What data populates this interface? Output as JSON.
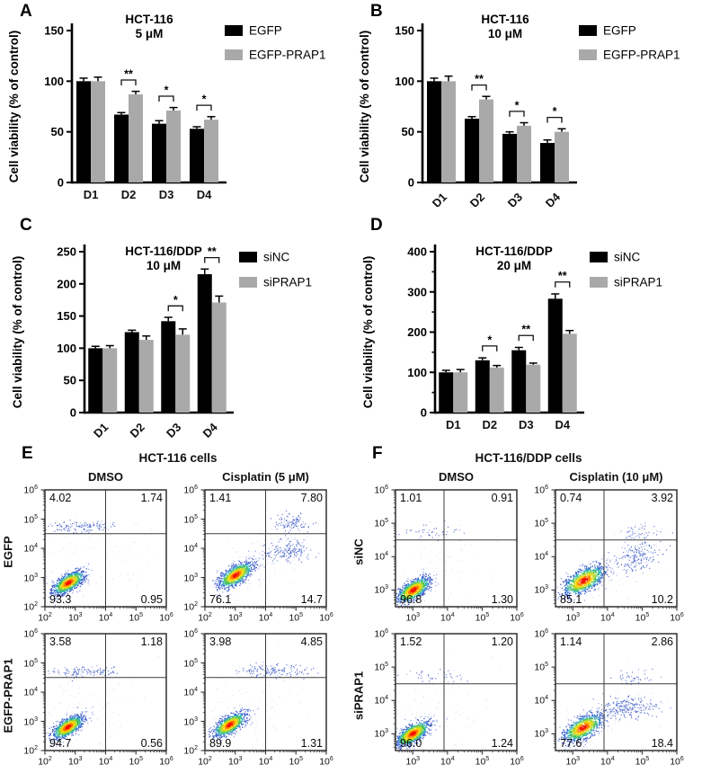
{
  "chart_data": [
    {
      "panel": "A",
      "type": "bar",
      "title": "HCT-116",
      "subtitle": "5 μM",
      "ylabel": "Cell viability (% of control)",
      "ylim": [
        0,
        150
      ],
      "yticks": [
        0,
        50,
        100,
        150
      ],
      "categories": [
        "D1",
        "D2",
        "D3",
        "D4"
      ],
      "x_tick_rotated": false,
      "series": [
        {
          "name": "EGFP",
          "color": "#000000",
          "values": [
            100,
            67,
            58,
            53
          ],
          "errors": [
            3,
            2,
            3,
            2
          ]
        },
        {
          "name": "EGFP-PRAP1",
          "color": "#a9a9a9",
          "values": [
            100,
            87,
            71,
            62
          ],
          "errors": [
            4,
            3,
            3,
            3
          ]
        }
      ],
      "significance": [
        {
          "category": "D2",
          "label": "**"
        },
        {
          "category": "D3",
          "label": "*"
        },
        {
          "category": "D4",
          "label": "*"
        }
      ]
    },
    {
      "panel": "B",
      "type": "bar",
      "title": "HCT-116",
      "subtitle": "10 μM",
      "ylabel": "Cell viability (% of control)",
      "ylim": [
        0,
        150
      ],
      "yticks": [
        0,
        50,
        100,
        150
      ],
      "categories": [
        "D1",
        "D2",
        "D3",
        "D4"
      ],
      "x_tick_rotated": true,
      "series": [
        {
          "name": "EGFP",
          "color": "#000000",
          "values": [
            100,
            63,
            48,
            39
          ],
          "errors": [
            3,
            2,
            2,
            3
          ]
        },
        {
          "name": "EGFP-PRAP1",
          "color": "#a9a9a9",
          "values": [
            100,
            82,
            56,
            50
          ],
          "errors": [
            5,
            3,
            3,
            3
          ]
        }
      ],
      "significance": [
        {
          "category": "D2",
          "label": "**"
        },
        {
          "category": "D3",
          "label": "*"
        },
        {
          "category": "D4",
          "label": "*"
        }
      ]
    },
    {
      "panel": "C",
      "type": "bar",
      "title": "HCT-116/DDP",
      "subtitle": "10 μM",
      "ylabel": "Cell viability (% of control)",
      "ylim": [
        0,
        250
      ],
      "yticks": [
        0,
        50,
        100,
        150,
        200,
        250
      ],
      "categories": [
        "D1",
        "D2",
        "D3",
        "D4"
      ],
      "x_tick_rotated": true,
      "series": [
        {
          "name": "siNC",
          "color": "#000000",
          "values": [
            100,
            125,
            142,
            215
          ],
          "errors": [
            3,
            3,
            6,
            8
          ]
        },
        {
          "name": "siPRAP1",
          "color": "#a9a9a9",
          "values": [
            100,
            113,
            121,
            171
          ],
          "errors": [
            4,
            6,
            9,
            10
          ]
        }
      ],
      "significance": [
        {
          "category": "D3",
          "label": "*"
        },
        {
          "category": "D4",
          "label": "**"
        }
      ]
    },
    {
      "panel": "D",
      "type": "bar",
      "title": "HCT-116/DDP",
      "subtitle": "20 μM",
      "ylabel": "Cell viability (% of control)",
      "ylim": [
        0,
        400
      ],
      "yticks": [
        0,
        100,
        200,
        300,
        400
      ],
      "categories": [
        "D1",
        "D2",
        "D3",
        "D4"
      ],
      "x_tick_rotated": false,
      "series": [
        {
          "name": "siNC",
          "color": "#000000",
          "values": [
            100,
            130,
            155,
            283
          ],
          "errors": [
            5,
            6,
            7,
            12
          ]
        },
        {
          "name": "siPRAP1",
          "color": "#a9a9a9",
          "values": [
            100,
            112,
            119,
            196
          ],
          "errors": [
            7,
            5,
            4,
            8
          ]
        }
      ],
      "significance": [
        {
          "category": "D2",
          "label": "*"
        },
        {
          "category": "D3",
          "label": "**"
        },
        {
          "category": "D4",
          "label": "**"
        }
      ]
    },
    {
      "panel": "E",
      "type": "flow_cytometry",
      "title": "HCT-116 cells",
      "columns": [
        "DMSO",
        "Cisplatin (5 μM)"
      ],
      "rows": [
        "EGFP",
        "EGFP-PRAP1"
      ],
      "log_range": [
        2,
        6
      ],
      "x_tick_exponents": [
        2,
        3,
        4,
        5,
        6
      ],
      "y_tick_exponents": [
        2,
        3,
        4,
        5,
        6
      ],
      "quadrant_gate_log": {
        "x": 4.0,
        "y": 4.5
      },
      "plots": [
        {
          "row": "EGFP",
          "column": "DMSO",
          "quadrants": {
            "ul": "4.02",
            "ur": "1.74",
            "ll": "93.3",
            "lr": "0.95"
          },
          "clusters": [
            {
              "cx": 2.78,
              "cy": 2.82,
              "sx": 0.26,
              "sy": 0.2,
              "corr": 0.65,
              "n": 950,
              "style": "dense"
            },
            {
              "cx": 3.25,
              "cy": 4.72,
              "sx": 0.55,
              "sy": 0.1,
              "corr": 0,
              "n": 130,
              "style": "sparse"
            },
            {
              "cx": 3.6,
              "cy": 3.5,
              "sx": 1.1,
              "sy": 0.9,
              "corr": 0.3,
              "n": 80,
              "style": "faint"
            }
          ]
        },
        {
          "row": "EGFP",
          "column": "Cisplatin (5 μM)",
          "quadrants": {
            "ul": "1.41",
            "ur": "7.80",
            "ll": "76.1",
            "lr": "14.7"
          },
          "clusters": [
            {
              "cx": 3.02,
              "cy": 3.08,
              "sx": 0.28,
              "sy": 0.22,
              "corr": 0.65,
              "n": 900,
              "style": "dense"
            },
            {
              "cx": 4.85,
              "cy": 4.85,
              "sx": 0.3,
              "sy": 0.14,
              "corr": 0,
              "n": 110,
              "style": "sparse"
            },
            {
              "cx": 4.7,
              "cy": 3.9,
              "sx": 0.4,
              "sy": 0.18,
              "corr": 0.2,
              "n": 180,
              "style": "sparse"
            },
            {
              "cx": 3.9,
              "cy": 3.6,
              "sx": 0.8,
              "sy": 0.6,
              "corr": 0.5,
              "n": 120,
              "style": "faint"
            }
          ]
        },
        {
          "row": "EGFP-PRAP1",
          "column": "DMSO",
          "quadrants": {
            "ul": "3.58",
            "ur": "1.18",
            "ll": "94.7",
            "lr": "0.56"
          },
          "clusters": [
            {
              "cx": 2.76,
              "cy": 2.8,
              "sx": 0.26,
              "sy": 0.2,
              "corr": 0.65,
              "n": 950,
              "style": "dense"
            },
            {
              "cx": 3.4,
              "cy": 4.7,
              "sx": 0.62,
              "sy": 0.1,
              "corr": 0,
              "n": 120,
              "style": "sparse"
            },
            {
              "cx": 3.4,
              "cy": 3.4,
              "sx": 1.0,
              "sy": 0.8,
              "corr": 0.3,
              "n": 70,
              "style": "faint"
            }
          ]
        },
        {
          "row": "EGFP-PRAP1",
          "column": "Cisplatin (5 μM)",
          "quadrants": {
            "ul": "3.98",
            "ur": "4.85",
            "ll": "89.9",
            "lr": "1.31"
          },
          "clusters": [
            {
              "cx": 2.82,
              "cy": 2.88,
              "sx": 0.27,
              "sy": 0.21,
              "corr": 0.65,
              "n": 900,
              "style": "dense"
            },
            {
              "cx": 4.3,
              "cy": 4.72,
              "sx": 0.65,
              "sy": 0.11,
              "corr": 0,
              "n": 150,
              "style": "sparse"
            },
            {
              "cx": 3.6,
              "cy": 3.5,
              "sx": 1.0,
              "sy": 0.8,
              "corr": 0.3,
              "n": 90,
              "style": "faint"
            }
          ]
        }
      ]
    },
    {
      "panel": "F",
      "type": "flow_cytometry",
      "title": "HCT-116/DDP cells",
      "columns": [
        "DMSO",
        "Cisplatin (10 μM)"
      ],
      "rows": [
        "siNC",
        "siPRAP1"
      ],
      "log_range": [
        2.5,
        6
      ],
      "x_tick_exponents": [
        3,
        4,
        5,
        6
      ],
      "y_tick_exponents": [
        3,
        4,
        5,
        6
      ],
      "quadrant_gate_log": {
        "x": 3.9,
        "y": 4.5
      },
      "plots": [
        {
          "row": "siNC",
          "column": "DMSO",
          "quadrants": {
            "ul": "1.01",
            "ur": "0.91",
            "ll": "96.8",
            "lr": "1.30"
          },
          "clusters": [
            {
              "cx": 3.02,
              "cy": 3.0,
              "sx": 0.24,
              "sy": 0.19,
              "corr": 0.65,
              "n": 950,
              "style": "dense"
            },
            {
              "cx": 3.6,
              "cy": 4.75,
              "sx": 0.5,
              "sy": 0.11,
              "corr": 0,
              "n": 45,
              "style": "sparse"
            },
            {
              "cx": 3.6,
              "cy": 3.6,
              "sx": 0.9,
              "sy": 0.8,
              "corr": 0.3,
              "n": 80,
              "style": "faint"
            }
          ]
        },
        {
          "row": "siNC",
          "column": "Cisplatin (10 μM)",
          "quadrants": {
            "ul": "0.74",
            "ur": "3.92",
            "ll": "85.1",
            "lr": "10.2"
          },
          "clusters": [
            {
              "cx": 3.32,
              "cy": 3.28,
              "sx": 0.3,
              "sy": 0.22,
              "corr": 0.6,
              "n": 950,
              "style": "dense"
            },
            {
              "cx": 4.85,
              "cy": 4.0,
              "sx": 0.33,
              "sy": 0.22,
              "corr": 0.3,
              "n": 200,
              "style": "sparse"
            },
            {
              "cx": 4.9,
              "cy": 4.7,
              "sx": 0.3,
              "sy": 0.12,
              "corr": 0,
              "n": 50,
              "style": "sparse"
            },
            {
              "cx": 4.0,
              "cy": 3.6,
              "sx": 0.8,
              "sy": 0.5,
              "corr": 0.4,
              "n": 100,
              "style": "faint"
            }
          ]
        },
        {
          "row": "siPRAP1",
          "column": "DMSO",
          "quadrants": {
            "ul": "1.52",
            "ur": "1.20",
            "ll": "96.0",
            "lr": "1.24"
          },
          "clusters": [
            {
              "cx": 3.0,
              "cy": 3.0,
              "sx": 0.24,
              "sy": 0.19,
              "corr": 0.65,
              "n": 950,
              "style": "dense"
            },
            {
              "cx": 3.7,
              "cy": 4.7,
              "sx": 0.5,
              "sy": 0.1,
              "corr": 0,
              "n": 40,
              "style": "sparse"
            },
            {
              "cx": 3.6,
              "cy": 3.6,
              "sx": 0.9,
              "sy": 0.8,
              "corr": 0.3,
              "n": 80,
              "style": "faint"
            }
          ]
        },
        {
          "row": "siPRAP1",
          "column": "Cisplatin (10 μM)",
          "quadrants": {
            "ul": "1.14",
            "ur": "2.86",
            "ll": "77.6",
            "lr": "18.4"
          },
          "clusters": [
            {
              "cx": 3.3,
              "cy": 3.18,
              "sx": 0.28,
              "sy": 0.21,
              "corr": 0.6,
              "n": 900,
              "style": "dense"
            },
            {
              "cx": 4.55,
              "cy": 3.75,
              "sx": 0.45,
              "sy": 0.17,
              "corr": 0.15,
              "n": 260,
              "style": "sparse"
            },
            {
              "cx": 4.8,
              "cy": 4.65,
              "sx": 0.28,
              "sy": 0.12,
              "corr": 0,
              "n": 45,
              "style": "sparse"
            },
            {
              "cx": 3.9,
              "cy": 3.5,
              "sx": 0.8,
              "sy": 0.5,
              "corr": 0.4,
              "n": 90,
              "style": "faint"
            }
          ]
        }
      ]
    }
  ]
}
